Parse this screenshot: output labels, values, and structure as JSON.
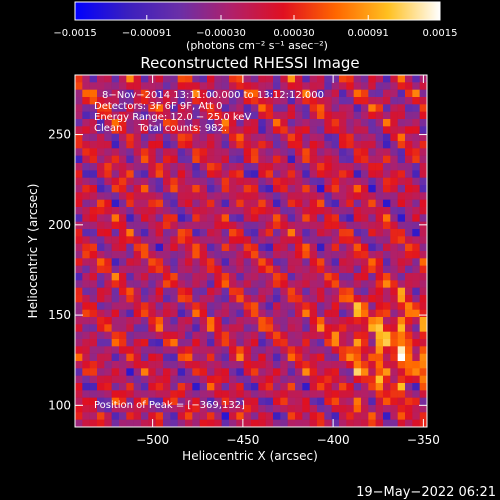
{
  "chart_data": {
    "type": "heatmap",
    "title": "Reconstructed RHESSI Image",
    "xlabel": "Heliocentric X (arcsec)",
    "ylabel": "Heliocentric Y (arcsec)",
    "xlim": [
      -543,
      -348
    ],
    "ylim": [
      88,
      283
    ],
    "x_ticks": [
      {
        "value": -500,
        "label": "−500"
      },
      {
        "value": -450,
        "label": "−450"
      },
      {
        "value": -400,
        "label": "−400"
      },
      {
        "value": -350,
        "label": "−350"
      }
    ],
    "y_ticks": [
      {
        "value": 100,
        "label": "100"
      },
      {
        "value": 150,
        "label": "150"
      },
      {
        "value": 200,
        "label": "200"
      },
      {
        "value": 250,
        "label": "250"
      }
    ],
    "colorbar": {
      "range": [
        -0.0015,
        0.0015
      ],
      "ticks": [
        {
          "value": -0.0015,
          "label": "−0.0015"
        },
        {
          "value": -0.00091,
          "label": "−0.00091"
        },
        {
          "value": -0.0003,
          "label": "−0.00030"
        },
        {
          "value": 0.0003,
          "label": "0.00030"
        },
        {
          "value": 0.00091,
          "label": "0.00091"
        },
        {
          "value": 0.0015,
          "label": "0.0015"
        }
      ],
      "unit_label": "(photons cm⁻² s⁻¹ asec⁻²)",
      "colors": [
        "#0000ff",
        "#3a1fbf",
        "#6a2fa8",
        "#b0206a",
        "#e01020",
        "#ff6600",
        "#ffc020",
        "#ffffff"
      ]
    },
    "annotations": [
      "8−Nov−2014 13:11:00.000 to 13:12:12.000",
      "Detectors: 3F 6F 9F, Att 0",
      "Energy Range: 12.0 − 25.0 keV",
      "Clean     Total counts: 982."
    ],
    "peak_label": "Position of Peak = [−369,132]",
    "peak_position": [
      -369,
      132
    ],
    "grid": 48
  },
  "footer": {
    "date": "19−May−2022 06:21"
  }
}
